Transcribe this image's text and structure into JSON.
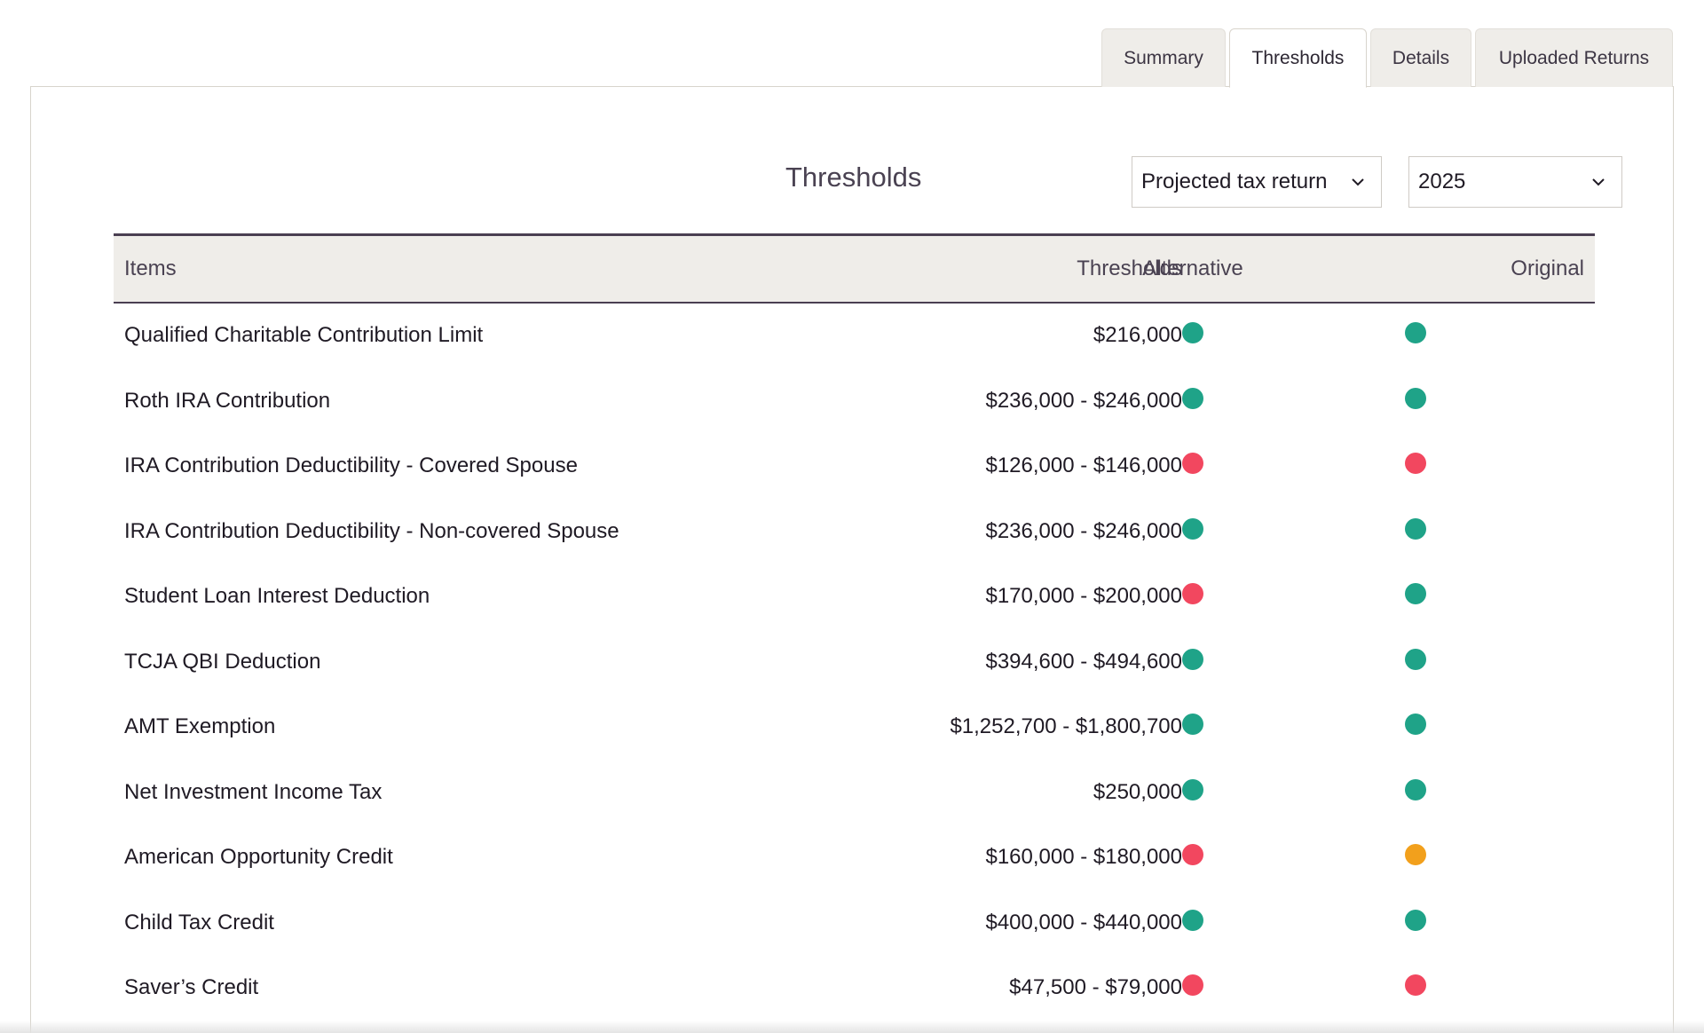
{
  "tabs": [
    {
      "label": "Summary",
      "active": false
    },
    {
      "label": "Thresholds",
      "active": true
    },
    {
      "label": "Details",
      "active": false
    },
    {
      "label": "Uploaded Returns",
      "active": false
    }
  ],
  "header": {
    "title": "Thresholds",
    "return_select": {
      "value": "Projected tax return"
    },
    "year_select": {
      "value": "2025"
    }
  },
  "table": {
    "columns": {
      "items": "Items",
      "thresholds": "Thresholds",
      "alternative": "Alternative",
      "original": "Original"
    },
    "rows": [
      {
        "item": "Qualified Charitable Contribution Limit",
        "threshold": "$216,000",
        "alternative": "green",
        "original": "green"
      },
      {
        "item": "Roth IRA Contribution",
        "threshold": "$236,000 - $246,000",
        "alternative": "green",
        "original": "green"
      },
      {
        "item": "IRA Contribution Deductibility - Covered Spouse",
        "threshold": "$126,000 - $146,000",
        "alternative": "red",
        "original": "red"
      },
      {
        "item": "IRA Contribution Deductibility - Non-covered Spouse",
        "threshold": "$236,000 - $246,000",
        "alternative": "green",
        "original": "green"
      },
      {
        "item": "Student Loan Interest Deduction",
        "threshold": "$170,000 - $200,000",
        "alternative": "red",
        "original": "green"
      },
      {
        "item": "TCJA QBI Deduction",
        "threshold": "$394,600 - $494,600",
        "alternative": "green",
        "original": "green"
      },
      {
        "item": "AMT Exemption",
        "threshold": "$1,252,700 - $1,800,700",
        "alternative": "green",
        "original": "green"
      },
      {
        "item": "Net Investment Income Tax",
        "threshold": "$250,000",
        "alternative": "green",
        "original": "green"
      },
      {
        "item": "American Opportunity Credit",
        "threshold": "$160,000 - $180,000",
        "alternative": "red",
        "original": "orange"
      },
      {
        "item": "Child Tax Credit",
        "threshold": "$400,000 - $440,000",
        "alternative": "green",
        "original": "green"
      },
      {
        "item": "Saver’s Credit",
        "threshold": "$47,500 - $79,000",
        "alternative": "red",
        "original": "red"
      }
    ]
  },
  "colors": {
    "green": "#1fa388",
    "red": "#f2475f",
    "orange": "#f2a01c",
    "header_border": "#4a3f52"
  }
}
